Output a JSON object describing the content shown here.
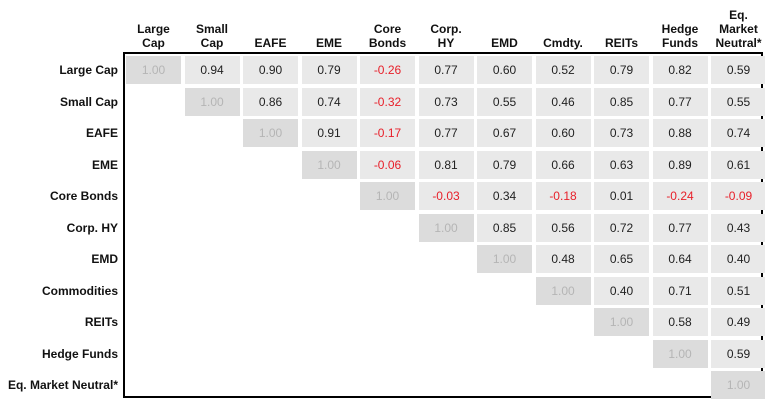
{
  "colors": {
    "cell_bg": "#e9e9e9",
    "diag_bg": "#dcdcdc",
    "diag_text": "#b5b5b5",
    "negative_text": "#e8202a",
    "border": "#000000"
  },
  "chart_data": {
    "type": "table",
    "title": "",
    "columns": [
      "Large\nCap",
      "Small\nCap",
      "EAFE",
      "EME",
      "Core\nBonds",
      "Corp.\nHY",
      "EMD",
      "Cmdty.",
      "REITs",
      "Hedge\nFunds",
      "Eq.\nMarket\nNeutral*"
    ],
    "rows": [
      "Large Cap",
      "Small Cap",
      "EAFE",
      "EME",
      "Core Bonds",
      "Corp. HY",
      "EMD",
      "Commodities",
      "REITs",
      "Hedge Funds",
      "Eq. Market Neutral*"
    ],
    "values": [
      [
        "1.00",
        "0.94",
        "0.90",
        "0.79",
        "-0.26",
        "0.77",
        "0.60",
        "0.52",
        "0.79",
        "0.82",
        "0.59"
      ],
      [
        null,
        "1.00",
        "0.86",
        "0.74",
        "-0.32",
        "0.73",
        "0.55",
        "0.46",
        "0.85",
        "0.77",
        "0.55"
      ],
      [
        null,
        null,
        "1.00",
        "0.91",
        "-0.17",
        "0.77",
        "0.67",
        "0.60",
        "0.73",
        "0.88",
        "0.74"
      ],
      [
        null,
        null,
        null,
        "1.00",
        "-0.06",
        "0.81",
        "0.79",
        "0.66",
        "0.63",
        "0.89",
        "0.61"
      ],
      [
        null,
        null,
        null,
        null,
        "1.00",
        "-0.03",
        "0.34",
        "-0.18",
        "0.01",
        "-0.24",
        "-0.09"
      ],
      [
        null,
        null,
        null,
        null,
        null,
        "1.00",
        "0.85",
        "0.56",
        "0.72",
        "0.77",
        "0.43"
      ],
      [
        null,
        null,
        null,
        null,
        null,
        null,
        "1.00",
        "0.48",
        "0.65",
        "0.64",
        "0.40"
      ],
      [
        null,
        null,
        null,
        null,
        null,
        null,
        null,
        "1.00",
        "0.40",
        "0.71",
        "0.51"
      ],
      [
        null,
        null,
        null,
        null,
        null,
        null,
        null,
        null,
        "1.00",
        "0.58",
        "0.49"
      ],
      [
        null,
        null,
        null,
        null,
        null,
        null,
        null,
        null,
        null,
        "1.00",
        "0.59"
      ],
      [
        null,
        null,
        null,
        null,
        null,
        null,
        null,
        null,
        null,
        null,
        "1.00"
      ]
    ]
  }
}
